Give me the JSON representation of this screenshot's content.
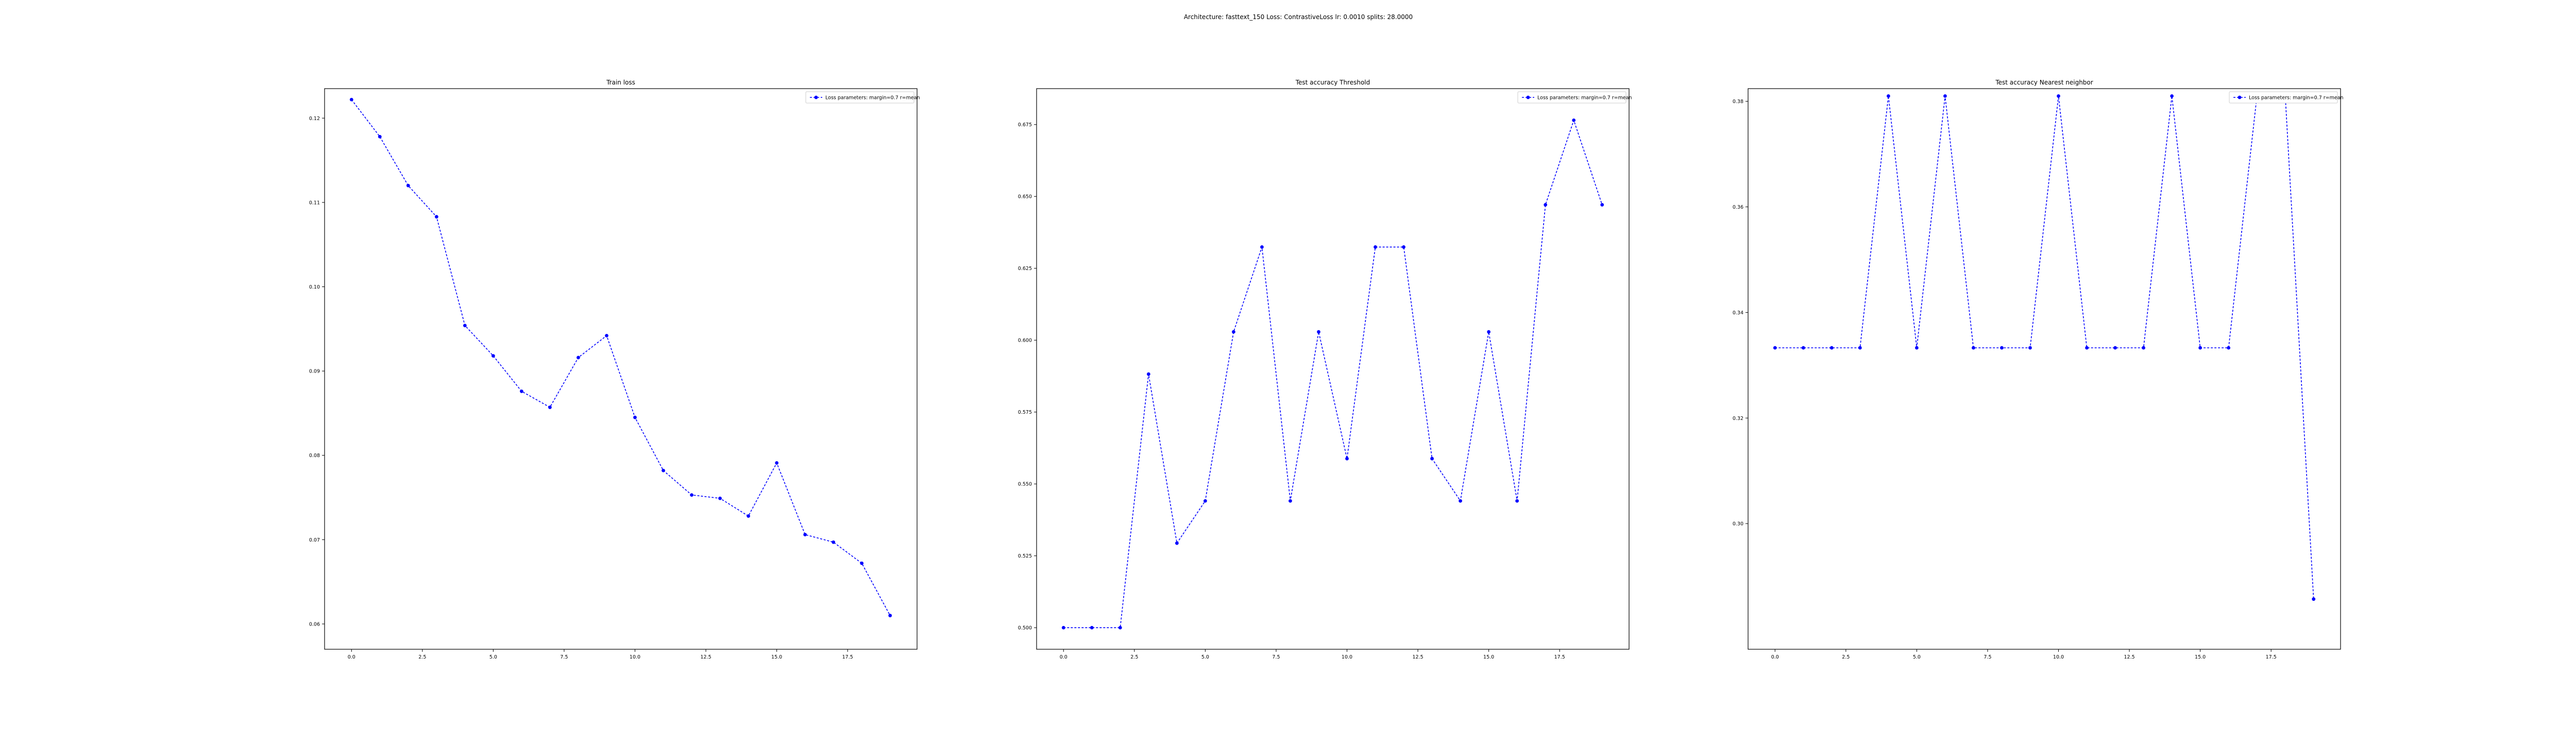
{
  "figure": {
    "suptitle": "Architecture: fasttext_150 Loss: ContrastiveLoss lr: 0.0010 splits: 28.0000"
  },
  "colors": {
    "series": "#0000ff",
    "frame": "#000000",
    "background": "#ffffff"
  },
  "chart_data": [
    {
      "type": "line",
      "title": "Train loss",
      "xlabel": "",
      "ylabel": "",
      "xlim": [
        -0.95,
        19.95
      ],
      "ylim": [
        0.057,
        0.1235
      ],
      "xticks": [
        0.0,
        2.5,
        5.0,
        7.5,
        10.0,
        12.5,
        15.0,
        17.5
      ],
      "xtick_labels": [
        "0.0",
        "2.5",
        "5.0",
        "7.5",
        "10.0",
        "12.5",
        "15.0",
        "17.5"
      ],
      "yticks": [
        0.06,
        0.07,
        0.08,
        0.09,
        0.1,
        0.11,
        0.12
      ],
      "ytick_labels": [
        "0.06",
        "0.07",
        "0.08",
        "0.09",
        "0.10",
        "0.11",
        "0.12"
      ],
      "grid": false,
      "legend_position": "top-right",
      "series": [
        {
          "name": "Loss parameters: margin=0.7 r=mean",
          "style": "dashed-with-circle-markers",
          "x": [
            0,
            1,
            2,
            3,
            4,
            5,
            6,
            7,
            8,
            9,
            10,
            11,
            12,
            13,
            14,
            15,
            16,
            17,
            18,
            19
          ],
          "y": [
            0.1222,
            0.1178,
            0.112,
            0.1083,
            0.0954,
            0.0918,
            0.0876,
            0.0857,
            0.0916,
            0.0942,
            0.0845,
            0.0782,
            0.0753,
            0.0749,
            0.0728,
            0.0791,
            0.0706,
            0.0697,
            0.0672,
            0.061
          ]
        }
      ]
    },
    {
      "type": "line",
      "title": "Test accuracy Threshold",
      "xlabel": "",
      "ylabel": "",
      "xlim": [
        -0.95,
        19.95
      ],
      "ylim": [
        0.4925,
        0.6875
      ],
      "xticks": [
        0.0,
        2.5,
        5.0,
        7.5,
        10.0,
        12.5,
        15.0,
        17.5
      ],
      "xtick_labels": [
        "0.0",
        "2.5",
        "5.0",
        "7.5",
        "10.0",
        "12.5",
        "15.0",
        "17.5"
      ],
      "yticks": [
        0.5,
        0.525,
        0.55,
        0.575,
        0.6,
        0.625,
        0.65,
        0.675
      ],
      "ytick_labels": [
        "0.500",
        "0.525",
        "0.550",
        "0.575",
        "0.600",
        "0.625",
        "0.650",
        "0.675"
      ],
      "grid": false,
      "legend_position": "top-right",
      "series": [
        {
          "name": "Loss parameters: margin=0.7 r=mean",
          "style": "dashed-with-circle-markers",
          "x": [
            0,
            1,
            2,
            3,
            4,
            5,
            6,
            7,
            8,
            9,
            10,
            11,
            12,
            13,
            14,
            15,
            16,
            17,
            18,
            19
          ],
          "y": [
            0.5,
            0.5,
            0.5,
            0.5882,
            0.5294,
            0.5441,
            0.6029,
            0.6324,
            0.5441,
            0.6029,
            0.5588,
            0.6324,
            0.6324,
            0.5588,
            0.5441,
            0.6029,
            0.5441,
            0.6471,
            0.6765,
            0.6471
          ]
        }
      ]
    },
    {
      "type": "line",
      "title": "Test accuracy Nearest neighbor",
      "xlabel": "",
      "ylabel": "",
      "xlim": [
        -0.95,
        19.95
      ],
      "ylim": [
        0.2762,
        0.3824
      ],
      "xticks": [
        0.0,
        2.5,
        5.0,
        7.5,
        10.0,
        12.5,
        15.0,
        17.5
      ],
      "xtick_labels": [
        "0.0",
        "2.5",
        "5.0",
        "7.5",
        "10.0",
        "12.5",
        "15.0",
        "17.5"
      ],
      "yticks": [
        0.3,
        0.32,
        0.34,
        0.36,
        0.38
      ],
      "ytick_labels": [
        "0.30",
        "0.32",
        "0.34",
        "0.36",
        "0.38"
      ],
      "grid": false,
      "legend_position": "top-right",
      "series": [
        {
          "name": "Loss parameters: margin=0.7 r=mean",
          "style": "dashed-with-circle-markers",
          "x": [
            0,
            1,
            2,
            3,
            4,
            5,
            6,
            7,
            8,
            9,
            10,
            11,
            12,
            13,
            14,
            15,
            16,
            17,
            18,
            19
          ],
          "y": [
            0.3333,
            0.3333,
            0.3333,
            0.3333,
            0.381,
            0.3333,
            0.381,
            0.3333,
            0.3333,
            0.3333,
            0.381,
            0.3333,
            0.3333,
            0.3333,
            0.381,
            0.3333,
            0.3333,
            0.381,
            0.381,
            0.2857
          ]
        }
      ]
    }
  ]
}
